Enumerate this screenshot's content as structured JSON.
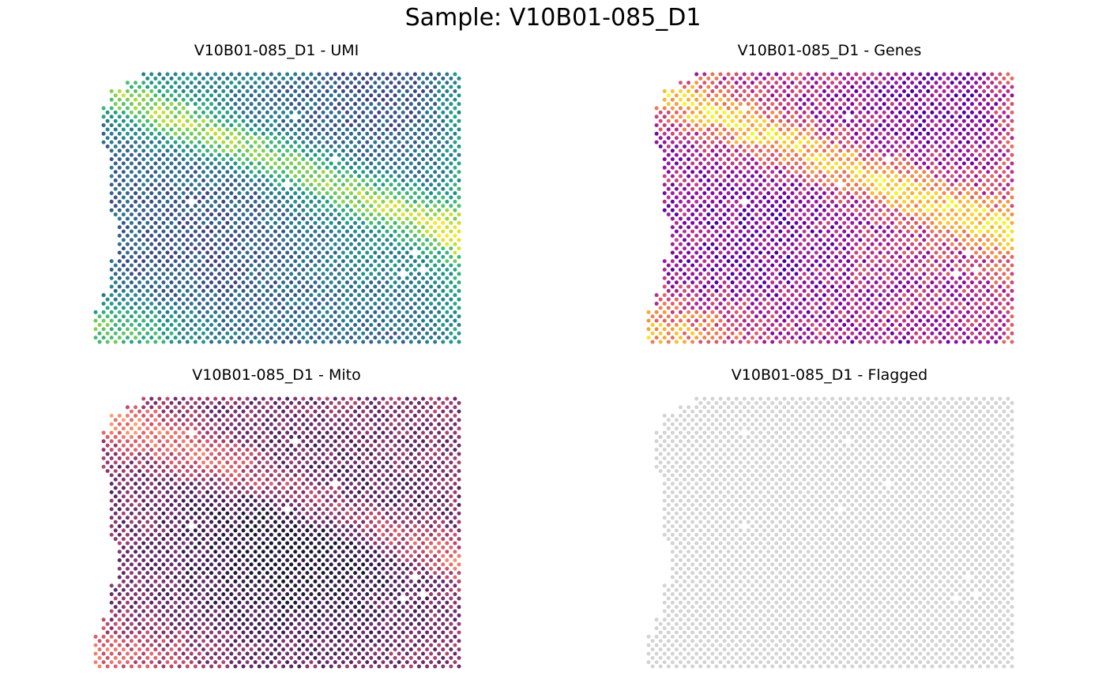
{
  "title": "Sample: V10B01-085_D1",
  "chart_data": [
    {
      "type": "scatter",
      "title": "V10B01-085_D1 - UMI",
      "metric": "UMI",
      "palette": "viridis",
      "missing_spots": [
        [
          8,
          12
        ],
        [
          20,
          30
        ],
        [
          26,
          24
        ],
        [
          30,
          12
        ],
        [
          42,
          40
        ],
        [
          46,
          41
        ],
        [
          47,
          38
        ],
        [
          38,
          55
        ],
        [
          41,
          53
        ],
        [
          43,
          52
        ],
        [
          44,
          53
        ],
        [
          45,
          54
        ],
        [
          60,
          50
        ],
        [
          63,
          55
        ],
        [
          10,
          25
        ]
      ]
    },
    {
      "type": "scatter",
      "title": "V10B01-085_D1 - Genes",
      "metric": "Genes",
      "palette": "plasma",
      "missing_spots": [
        [
          8,
          12
        ],
        [
          20,
          30
        ],
        [
          26,
          24
        ],
        [
          30,
          12
        ],
        [
          42,
          40
        ],
        [
          46,
          41
        ],
        [
          47,
          38
        ],
        [
          38,
          55
        ],
        [
          41,
          53
        ],
        [
          43,
          52
        ],
        [
          44,
          53
        ],
        [
          45,
          54
        ],
        [
          60,
          50
        ],
        [
          63,
          55
        ],
        [
          10,
          25
        ]
      ]
    },
    {
      "type": "scatter",
      "title": "V10B01-085_D1 - Mito",
      "metric": "Mito",
      "palette": "magma",
      "missing_spots": [
        [
          8,
          12
        ],
        [
          20,
          30
        ],
        [
          26,
          24
        ],
        [
          30,
          12
        ],
        [
          42,
          40
        ],
        [
          46,
          41
        ],
        [
          47,
          38
        ],
        [
          38,
          55
        ],
        [
          41,
          53
        ],
        [
          43,
          52
        ],
        [
          44,
          53
        ],
        [
          45,
          54
        ],
        [
          60,
          50
        ],
        [
          63,
          55
        ],
        [
          10,
          25
        ]
      ]
    },
    {
      "type": "scatter",
      "title": "V10B01-085_D1 - Flagged",
      "metric": "Flagged",
      "palette": "flat",
      "spot_color": "#d3d3d3",
      "missing_spots": [
        [
          8,
          12
        ],
        [
          20,
          30
        ],
        [
          26,
          24
        ],
        [
          30,
          12
        ],
        [
          42,
          40
        ],
        [
          46,
          41
        ],
        [
          47,
          38
        ],
        [
          38,
          55
        ],
        [
          41,
          53
        ],
        [
          43,
          52
        ],
        [
          44,
          53
        ],
        [
          45,
          54
        ],
        [
          60,
          50
        ],
        [
          63,
          55
        ],
        [
          10,
          25
        ]
      ]
    }
  ]
}
